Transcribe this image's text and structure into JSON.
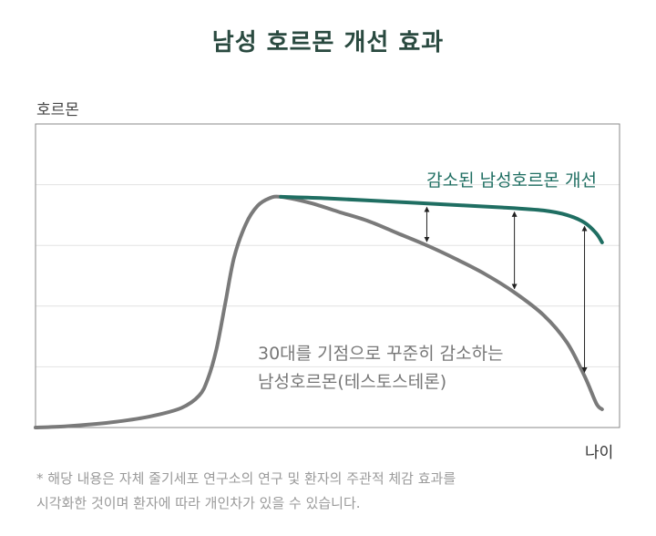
{
  "chart_data": {
    "type": "line",
    "title": "남성 호르몬 개선 효과",
    "ylabel": "호르몬",
    "xlabel": "나이",
    "grid": true,
    "series": [
      {
        "name": "30대를 기점으로 꾸준히 감소하는 남성호르몬(테스토스테론)",
        "color": "#7a7a7a",
        "points": [
          [
            0,
            0
          ],
          [
            5,
            0.4
          ],
          [
            10,
            1.1
          ],
          [
            15,
            2.2
          ],
          [
            20,
            3.8
          ],
          [
            25,
            6.5
          ],
          [
            28,
            10.5
          ],
          [
            29.5,
            16
          ],
          [
            31,
            26
          ],
          [
            32.5,
            41
          ],
          [
            34,
            56
          ],
          [
            36,
            67
          ],
          [
            38,
            73
          ],
          [
            40,
            75.5
          ],
          [
            42,
            76
          ],
          [
            47,
            74
          ],
          [
            52,
            71
          ],
          [
            57,
            68
          ],
          [
            62,
            64
          ],
          [
            67,
            60
          ],
          [
            72,
            55.5
          ],
          [
            77,
            50.5
          ],
          [
            82,
            44.5
          ],
          [
            87,
            37
          ],
          [
            91,
            28
          ],
          [
            94,
            17
          ],
          [
            96,
            8
          ],
          [
            97,
            6
          ]
        ]
      },
      {
        "name": "감소된 남성호르몬 개선",
        "color": "#1f6e62",
        "points": [
          [
            42,
            76
          ],
          [
            50,
            75.5
          ],
          [
            60,
            74.5
          ],
          [
            70,
            73.5
          ],
          [
            80,
            72.5
          ],
          [
            87,
            71.5
          ],
          [
            91,
            70
          ],
          [
            94,
            67.5
          ],
          [
            96,
            64
          ],
          [
            97,
            61
          ]
        ]
      }
    ],
    "improvement_arrows_at_age": [
      67,
      82,
      94
    ],
    "xlim": [
      0,
      100
    ],
    "ylim": [
      0,
      100
    ],
    "annotations": {
      "improved_label": "감소된 남성호르몬 개선",
      "declining_label_line1": "30대를 기점으로 꾸준히 감소하는",
      "declining_label_line2": "남성호르몬(테스토스테론)"
    }
  },
  "footnote": {
    "line1": "* 해당 내용은 자체 줄기세포 연구소의 연구 및 환자의 주관적 체감 효과를",
    "line2": "시각화한 것이며 환자에 따라 개인차가 있을 수 있습니다."
  }
}
